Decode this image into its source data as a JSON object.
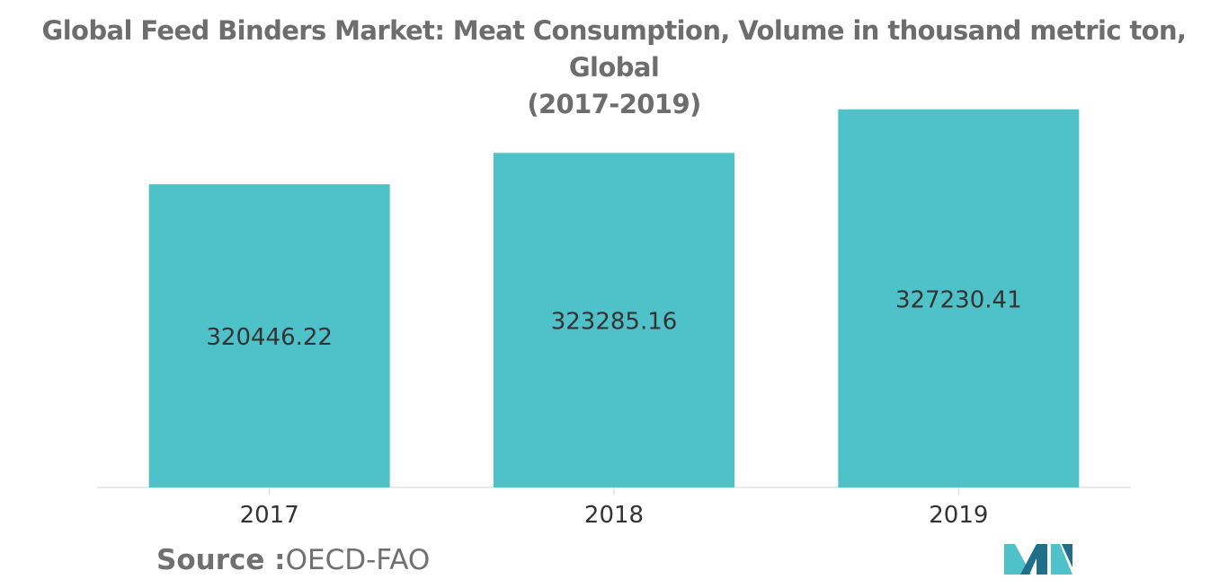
{
  "title_line1": "Global Feed Binders Market: Meat Consumption, Volume in thousand metric ton, Global",
  "title_line2": "(2017-2019)",
  "source_label": "Source :",
  "source_value": "OECD-FAO",
  "colors": {
    "bar": "#4fc1c9",
    "axis": "#d3d3d3",
    "text": "#333333",
    "logo_dark": "#1f6f8b",
    "logo_light": "#4fc1c9"
  },
  "logo_icon": "mordor-logo-icon",
  "chart_data": {
    "type": "bar",
    "title": "Global Feed Binders Market: Meat Consumption, Volume in thousand metric ton, Global (2017-2019)",
    "categories": [
      "2017",
      "2018",
      "2019"
    ],
    "values": [
      320446.22,
      323285.16,
      327230.41
    ],
    "value_labels": [
      "320446.22",
      "323285.16",
      "327230.41"
    ],
    "xlabel": "",
    "ylabel": "",
    "grid": false,
    "legend": "none"
  }
}
